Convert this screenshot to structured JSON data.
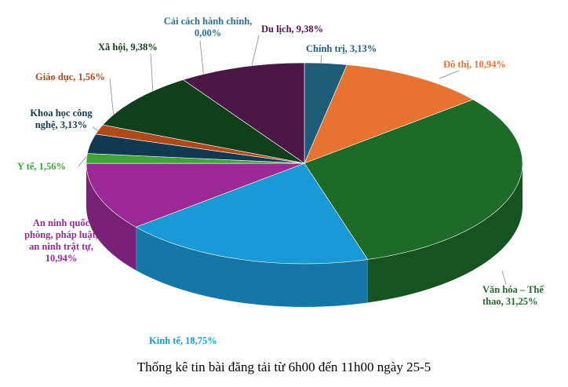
{
  "chart_data": {
    "type": "pie3d",
    "title": "Thống kê tin bài đăng tải từ 6h00 đến 11h00 ngày 25-5",
    "values": [
      3.13,
      10.94,
      31.25,
      18.75,
      10.94,
      1.56,
      3.13,
      1.56,
      9.38,
      0.0,
      9.38
    ],
    "value_labels": [
      "Chính trị, 3,13%",
      "Đô thị, 10,94%",
      "Văn hóa – Thể thao, 31,25%",
      "Kinh tế, 18,75%",
      "An ninh quốc phòng, pháp luật, an ninh trật tự, 10,94%",
      "Y tế, 1,56%",
      "Khoa học công nghệ, 3,13%",
      "Giáo dục, 1,56%",
      "Xã hội, 9,38%",
      "Cải cách hành chính, 0,00%",
      "Du lịch, 9,38%"
    ],
    "colors": [
      "#1f5c7a",
      "#e8722f",
      "#1d6a29",
      "#1999d6",
      "#9b2a97",
      "#3fa437",
      "#0f3a52",
      "#b0491a",
      "#113f1b",
      "#2e6f8e",
      "#4b1746"
    ]
  }
}
